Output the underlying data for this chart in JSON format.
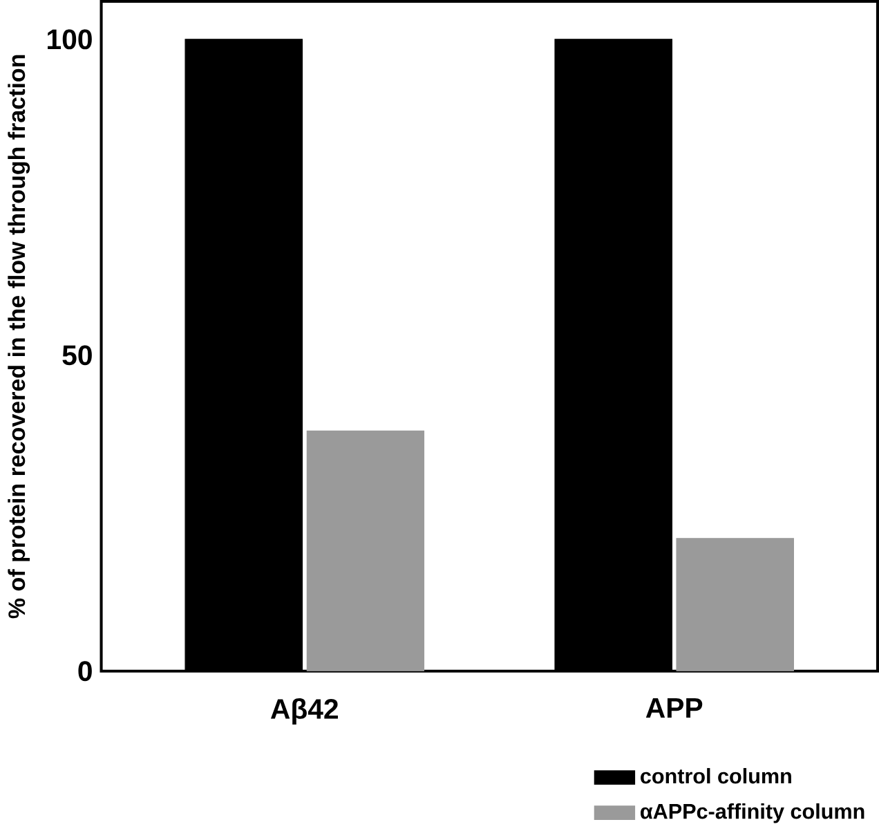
{
  "chart_data": {
    "type": "bar",
    "ylabel": "% of protein recovered in the flow through fraction",
    "categories": [
      "Aβ42",
      "APP"
    ],
    "series": [
      {
        "name": "control column",
        "color": "#000000",
        "values": [
          100,
          100
        ]
      },
      {
        "name": "αAPPc-affinity column",
        "color": "#9a9a9a",
        "values": [
          38,
          21
        ]
      }
    ],
    "ylim": [
      0,
      106
    ],
    "yticks": [
      0,
      50,
      100
    ],
    "grid": false,
    "legend": "bottom right"
  }
}
